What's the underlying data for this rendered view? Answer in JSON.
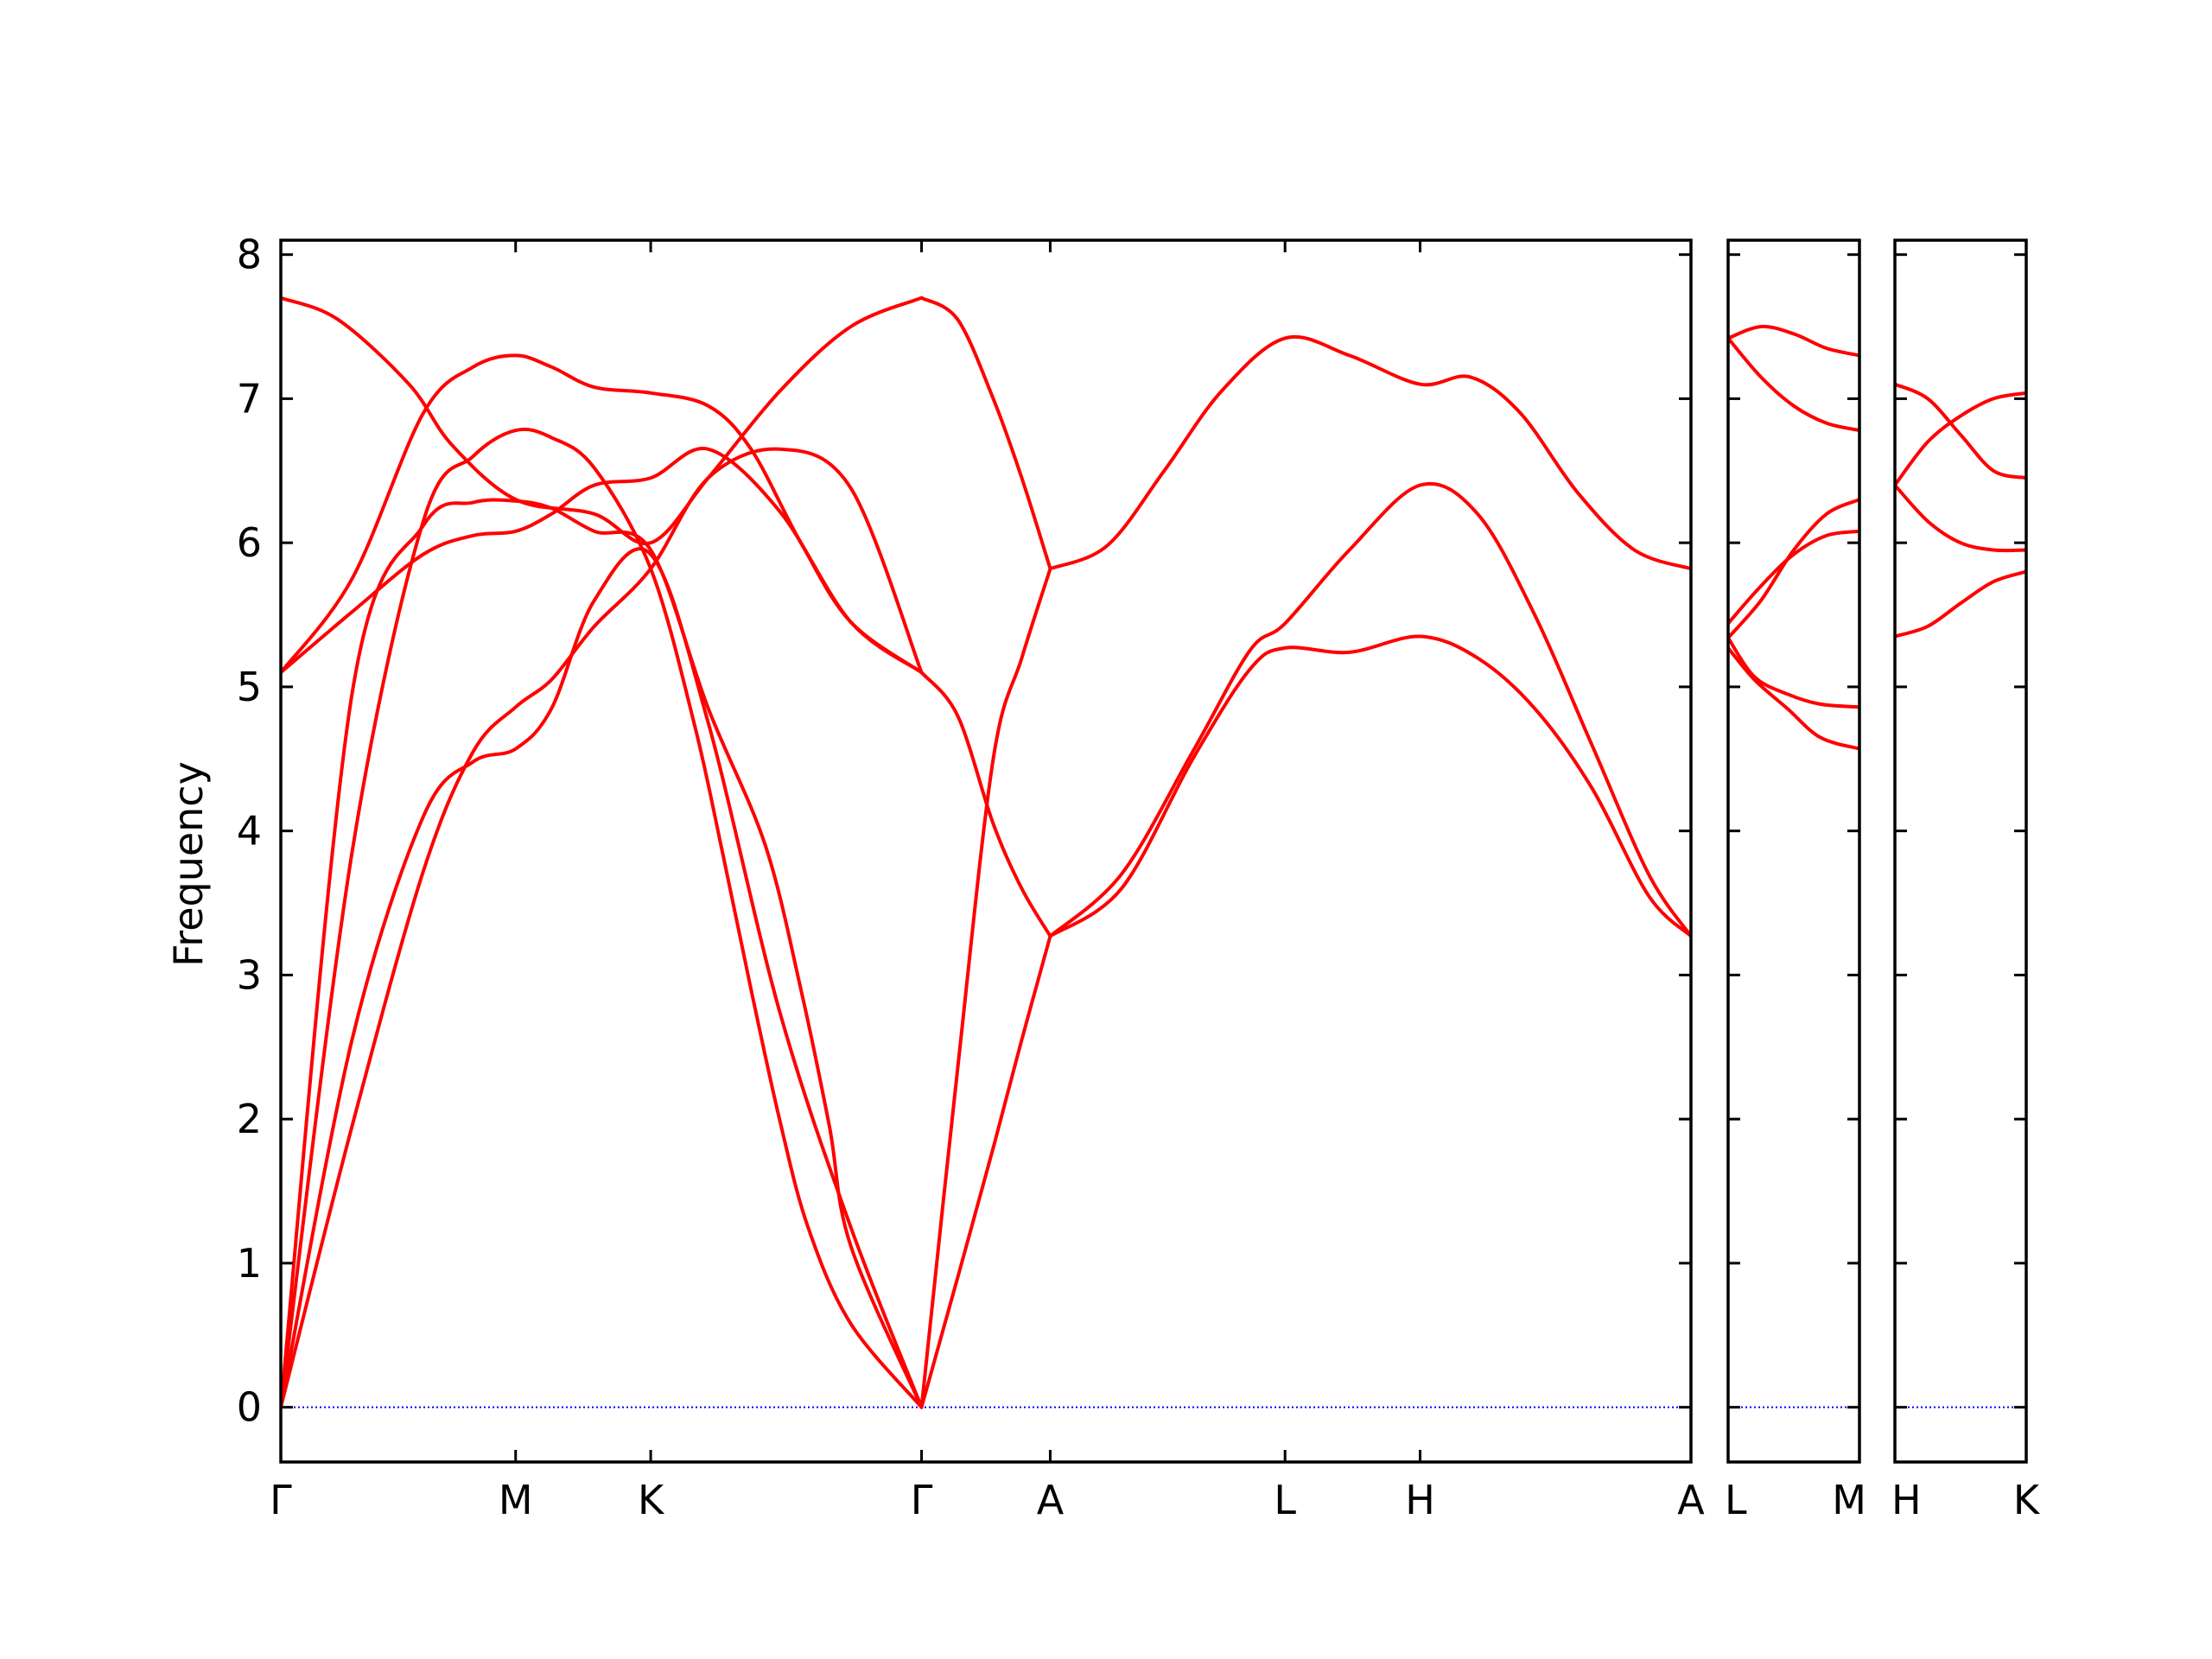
{
  "chart_data": {
    "type": "line",
    "title": "",
    "ylabel": "Frequency",
    "ylim": [
      -0.38,
      8.1
    ],
    "yticks": [
      0,
      1,
      2,
      3,
      4,
      5,
      6,
      7,
      8
    ],
    "grid": false,
    "legend": "none",
    "colors": {
      "bands": "#ff0000",
      "zero_line": "#0000ff",
      "frame": "#000000"
    },
    "panels": [
      {
        "labels": [
          "Γ",
          "M",
          "K",
          "Γ",
          "A",
          "L",
          "H",
          "A"
        ],
        "positions": [
          0,
          1.648,
          2.596,
          4.497,
          5.4,
          7.048,
          7.996,
          9.897
        ],
        "bands": [
          {
            "x": [
              0,
              0.5,
              1.0,
              1.35,
              1.648,
              1.9,
              2.2,
              2.596,
              3.0,
              3.5,
              4.0,
              4.497
            ],
            "y": [
              0,
              2.55,
              4.1,
              4.48,
              4.57,
              4.85,
              5.6,
              5.92,
              4.75,
              2.75,
              1.25,
              0
            ]
          },
          {
            "x": [
              0,
              0.5,
              1.0,
              1.35,
              1.648,
              1.9,
              2.2,
              2.596,
              3.0,
              3.5,
              4.0,
              4.497
            ],
            "y": [
              0,
              1.95,
              3.72,
              4.55,
              4.86,
              5.05,
              5.42,
              5.82,
              6.45,
              6.65,
              6.38,
              5.1
            ]
          },
          {
            "x": [
              0,
              0.5,
              1.0,
              1.35,
              1.648,
              1.9,
              2.2,
              2.596,
              2.9,
              3.1,
              3.3,
              3.5,
              3.7,
              4.0,
              4.497
            ],
            "y": [
              0,
              3.85,
              6.15,
              6.6,
              6.78,
              6.73,
              6.52,
              5.82,
              4.75,
              3.85,
              2.9,
              2.0,
              1.25,
              0.58,
              0
            ]
          },
          {
            "x": [
              0,
              0.5,
              1.0,
              1.35,
              1.648,
              1.9,
              2.2,
              2.596,
              3.0,
              3.4,
              3.65,
              3.85,
              4.0,
              4.497
            ],
            "y": [
              0,
              4.95,
              6.12,
              6.28,
              6.29,
              6.24,
              6.08,
              5.95,
              4.85,
              3.9,
              2.9,
              1.95,
              1.12,
              0
            ]
          },
          {
            "x": [
              0,
              0.5,
              1.0,
              1.35,
              1.648,
              1.9,
              2.2,
              2.596,
              3.0,
              3.5,
              4.0,
              4.497
            ],
            "y": [
              5.1,
              5.52,
              5.92,
              6.05,
              6.08,
              6.2,
              6.4,
              6.45,
              6.65,
              6.22,
              5.45,
              5.1
            ]
          },
          {
            "x": [
              0,
              0.5,
              1.0,
              1.35,
              1.648,
              1.9,
              2.2,
              2.596,
              3.0,
              3.3,
              3.65,
              4.0,
              4.497
            ],
            "y": [
              5.1,
              5.75,
              6.9,
              7.22,
              7.3,
              7.22,
              7.08,
              7.04,
              6.95,
              6.65,
              6.0,
              5.45,
              5.1
            ]
          },
          {
            "x": [
              0,
              0.4,
              0.9,
              1.2,
              1.648,
              2.2,
              2.596,
              3.0,
              3.5,
              4.0,
              4.497
            ],
            "y": [
              7.7,
              7.55,
              7.1,
              6.68,
              6.3,
              6.2,
              6.0,
              6.45,
              7.05,
              7.5,
              7.7
            ]
          },
          {
            "x": [
              4.497,
              4.75,
              5.0,
              5.2,
              5.4
            ],
            "y": [
              5.1,
              4.8,
              4.05,
              3.6,
              3.27
            ]
          },
          {
            "x": [
              4.497,
              4.75,
              5.0,
              5.2,
              5.4
            ],
            "y": [
              0,
              2.35,
              4.5,
              5.2,
              5.82
            ]
          },
          {
            "x": [
              4.497,
              4.75,
              5.0,
              5.2,
              5.4
            ],
            "y": [
              7.7,
              7.55,
              7.0,
              6.45,
              5.82
            ]
          },
          {
            "x": [
              4.497,
              4.75,
              5.0,
              5.2,
              5.4
            ],
            "y": [
              0,
              0.9,
              1.8,
              2.55,
              3.27
            ]
          },
          {
            "x": [
              5.4,
              5.9,
              6.4,
              6.8,
              7.048,
              7.5,
              7.996,
              8.4,
              8.8,
              9.2,
              9.6,
              9.897
            ],
            "y": [
              3.27,
              3.6,
              4.5,
              5.12,
              5.27,
              5.24,
              5.35,
              5.2,
              4.85,
              4.3,
              3.55,
              3.27
            ]
          },
          {
            "x": [
              5.4,
              5.9,
              6.4,
              6.8,
              7.048,
              7.5,
              7.996,
              8.4,
              8.8,
              9.2,
              9.6,
              9.897
            ],
            "y": [
              3.27,
              3.7,
              4.55,
              5.25,
              5.44,
              5.95,
              6.4,
              6.2,
              5.5,
              4.6,
              3.7,
              3.27
            ]
          },
          {
            "x": [
              5.4,
              5.8,
              6.2,
              6.6,
              7.048,
              7.5,
              7.996,
              8.35,
              8.7,
              9.1,
              9.5,
              9.897
            ],
            "y": [
              5.82,
              5.98,
              6.5,
              7.05,
              7.42,
              7.3,
              7.1,
              7.15,
              6.9,
              6.35,
              5.95,
              5.82
            ]
          }
        ],
        "zero_line": 0
      },
      {
        "labels": [
          "L",
          "M"
        ],
        "positions": [
          0,
          1.0
        ],
        "bands": [
          {
            "x": [
              0,
              0.2,
              0.45,
              0.7,
              1.0
            ],
            "y": [
              5.27,
              5.05,
              4.85,
              4.65,
              4.57
            ]
          },
          {
            "x": [
              0,
              0.2,
              0.45,
              0.7,
              1.0
            ],
            "y": [
              5.34,
              5.07,
              4.95,
              4.88,
              4.86
            ]
          },
          {
            "x": [
              0,
              0.25,
              0.5,
              0.75,
              1.0
            ],
            "y": [
              5.44,
              5.7,
              5.92,
              6.05,
              6.08
            ]
          },
          {
            "x": [
              0,
              0.25,
              0.5,
              0.75,
              1.0
            ],
            "y": [
              5.34,
              5.6,
              5.95,
              6.2,
              6.3
            ]
          },
          {
            "x": [
              0,
              0.25,
              0.5,
              0.75,
              1.0
            ],
            "y": [
              7.42,
              7.15,
              6.95,
              6.83,
              6.78
            ]
          },
          {
            "x": [
              0,
              0.25,
              0.5,
              0.75,
              1.0
            ],
            "y": [
              7.42,
              7.5,
              7.45,
              7.35,
              7.3
            ]
          }
        ],
        "zero_line": 0
      },
      {
        "labels": [
          "H",
          "K"
        ],
        "positions": [
          0,
          1.0
        ],
        "bands": [
          {
            "x": [
              0,
              0.25,
              0.5,
              0.75,
              1.0
            ],
            "y": [
              5.35,
              5.42,
              5.58,
              5.73,
              5.8
            ]
          },
          {
            "x": [
              0,
              0.25,
              0.5,
              0.75,
              1.0
            ],
            "y": [
              6.4,
              6.15,
              6.0,
              5.95,
              5.95
            ]
          },
          {
            "x": [
              0,
              0.25,
              0.5,
              0.75,
              1.0
            ],
            "y": [
              6.4,
              6.7,
              6.88,
              7.0,
              7.04
            ]
          },
          {
            "x": [
              0,
              0.25,
              0.5,
              0.75,
              1.0
            ],
            "y": [
              7.1,
              7.0,
              6.75,
              6.5,
              6.45
            ]
          }
        ],
        "zero_line": 0
      }
    ]
  }
}
